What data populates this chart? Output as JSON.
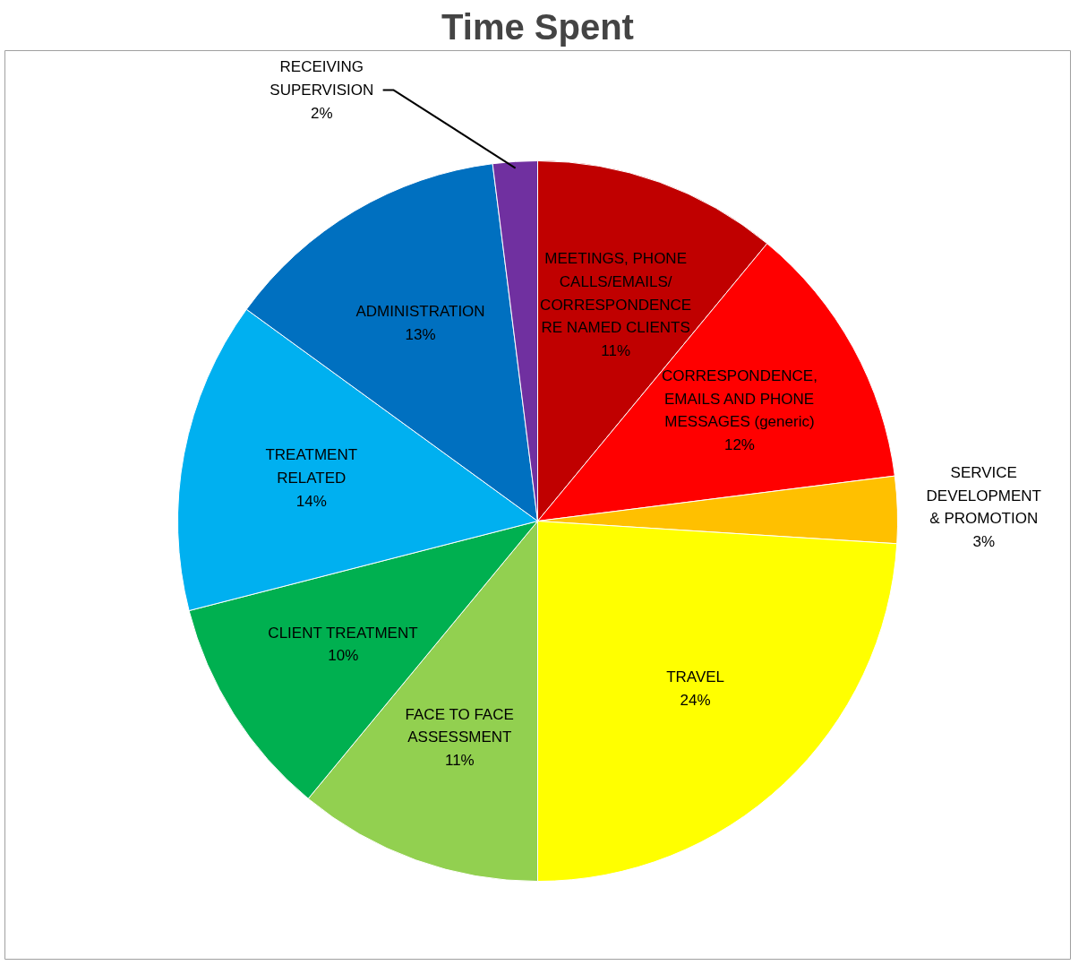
{
  "chart_data": {
    "type": "pie",
    "title": "Time Spent",
    "categories": [
      "MEETINGS, PHONE\nCALLS/EMAILS/\nCORRESPONDENCE\nRE NAMED CLIENTS",
      "CORRESPONDENCE,\nEMAILS AND PHONE\nMESSAGES (generic)",
      "SERVICE\nDEVELOPMENT\n& PROMOTION",
      "TRAVEL",
      "FACE TO FACE\nASSESSMENT",
      "CLIENT TREATMENT",
      "TREATMENT\nRELATED",
      "ADMINISTRATION",
      "RECEIVING\nSUPERVISION"
    ],
    "values": [
      11,
      12,
      3,
      24,
      11,
      10,
      14,
      13,
      2
    ],
    "value_labels": [
      "11%",
      "12%",
      "3%",
      "24%",
      "11%",
      "10%",
      "14%",
      "13%",
      "2%"
    ],
    "colors": [
      "#c00000",
      "#ff0000",
      "#ffc000",
      "#ffff00",
      "#92d050",
      "#00b050",
      "#00b0f0",
      "#0070c0",
      "#7030a0"
    ]
  }
}
